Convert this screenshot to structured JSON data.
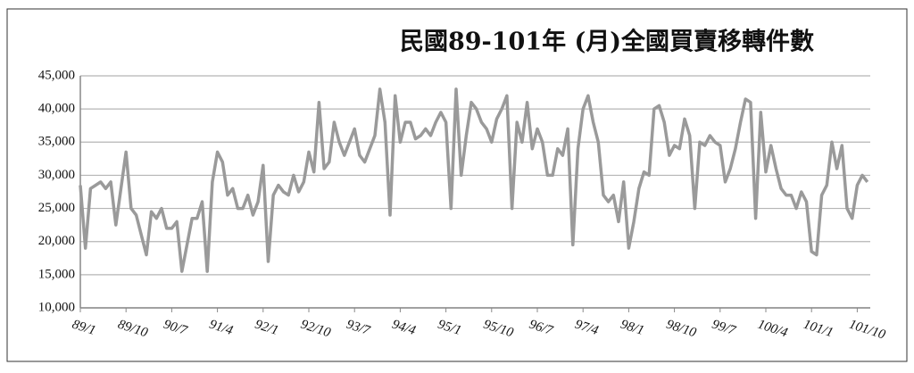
{
  "chart_data": {
    "type": "line",
    "title": "民國89-101年 (月)全國買賣移轉件數",
    "categories": [
      "89/1",
      null,
      null,
      null,
      null,
      null,
      null,
      null,
      null,
      "89/10",
      null,
      null,
      null,
      null,
      null,
      null,
      null,
      null,
      "90/7",
      null,
      null,
      null,
      null,
      null,
      null,
      null,
      null,
      "91/4",
      null,
      null,
      null,
      null,
      null,
      null,
      null,
      null,
      "92/1",
      null,
      null,
      null,
      null,
      null,
      null,
      null,
      null,
      "92/10",
      null,
      null,
      null,
      null,
      null,
      null,
      null,
      null,
      "93/7",
      null,
      null,
      null,
      null,
      null,
      null,
      null,
      null,
      "94/4",
      null,
      null,
      null,
      null,
      null,
      null,
      null,
      null,
      "95/1",
      null,
      null,
      null,
      null,
      null,
      null,
      null,
      null,
      "95/10",
      null,
      null,
      null,
      null,
      null,
      null,
      null,
      null,
      "96/7",
      null,
      null,
      null,
      null,
      null,
      null,
      null,
      null,
      "97/4",
      null,
      null,
      null,
      null,
      null,
      null,
      null,
      null,
      "98/1",
      null,
      null,
      null,
      null,
      null,
      null,
      null,
      null,
      "98/10",
      null,
      null,
      null,
      null,
      null,
      null,
      null,
      null,
      "99/7",
      null,
      null,
      null,
      null,
      null,
      null,
      null,
      null,
      "100/4",
      null,
      null,
      null,
      null,
      null,
      null,
      null,
      null,
      "101/1",
      null,
      null,
      null,
      null,
      null,
      null,
      null,
      null,
      "101/10",
      null,
      null
    ],
    "values": [
      28500,
      19000,
      28000,
      28500,
      29000,
      28000,
      29000,
      22500,
      28000,
      33500,
      25000,
      24000,
      21000,
      18000,
      24500,
      23500,
      25000,
      22000,
      22000,
      23000,
      15500,
      19500,
      23500,
      23500,
      26000,
      15500,
      29000,
      33500,
      32000,
      27000,
      28000,
      25000,
      25000,
      27000,
      24000,
      26000,
      31500,
      17000,
      27000,
      28500,
      27500,
      27000,
      30000,
      27500,
      29000,
      33500,
      30500,
      41000,
      31000,
      32000,
      38000,
      35000,
      33000,
      35000,
      37000,
      33000,
      32000,
      34000,
      36000,
      43000,
      38000,
      24000,
      42000,
      35000,
      38000,
      38000,
      35500,
      36000,
      37000,
      36000,
      38000,
      39500,
      38000,
      25000,
      43000,
      30000,
      36000,
      41000,
      40000,
      38000,
      37000,
      35000,
      38500,
      40000,
      42000,
      25000,
      38000,
      35000,
      41000,
      34000,
      37000,
      35000,
      30000,
      30000,
      34000,
      33000,
      37000,
      19500,
      34000,
      40000,
      42000,
      38000,
      35000,
      27000,
      26000,
      27000,
      23000,
      29000,
      19000,
      23000,
      28000,
      30500,
      30000,
      40000,
      40500,
      38000,
      33000,
      34500,
      34000,
      38500,
      36000,
      25000,
      35000,
      34500,
      36000,
      35000,
      34500,
      29000,
      31000,
      34000,
      38000,
      41500,
      41000,
      23500,
      39500,
      30500,
      34500,
      31000,
      28000,
      27000,
      27000,
      25000,
      27500,
      26000,
      18500,
      18000,
      27000,
      28500,
      35000,
      31000,
      34500,
      25000,
      23500,
      28500,
      30000,
      29000
    ],
    "color": "#9a9a9a",
    "ylim": [
      10000,
      45000
    ],
    "yticks": [
      {
        "value": 10000,
        "label": "10,000"
      },
      {
        "value": 15000,
        "label": "15,000"
      },
      {
        "value": 20000,
        "label": "20,000"
      },
      {
        "value": 25000,
        "label": "25,000"
      },
      {
        "value": 30000,
        "label": "30,000"
      },
      {
        "value": 35000,
        "label": "35,000"
      },
      {
        "value": 40000,
        "label": "40,000"
      },
      {
        "value": 45000,
        "label": "45,000"
      }
    ],
    "grid": true
  }
}
